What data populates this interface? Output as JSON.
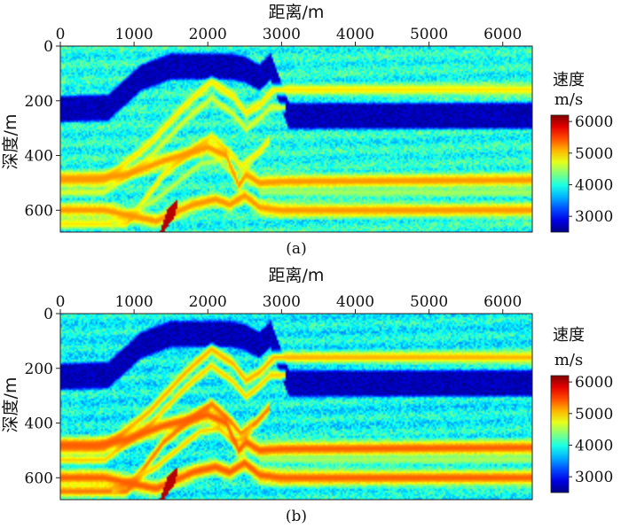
{
  "chart_data": [
    {
      "type": "heatmap",
      "panel": "(a)",
      "xlabel": "距离/m",
      "ylabel": "深度/m",
      "xlim": [
        0,
        6400
      ],
      "ylim": [
        0,
        680
      ],
      "xticks": [
        0,
        1000,
        2000,
        3000,
        4000,
        5000,
        6000
      ],
      "yticks": [
        0,
        200,
        400,
        600
      ],
      "colorbar": {
        "title": "速度",
        "unit": "m/s",
        "range": [
          2500,
          6200
        ],
        "ticks": [
          3000,
          4000,
          5000,
          6000
        ]
      },
      "background_velocity": 4000,
      "low_velocity_layer": {
        "velocity": 2700,
        "thickness_m": 110,
        "top_x": [
          0,
          650,
          1100,
          1500,
          2000,
          2300,
          2500,
          2700,
          2850,
          3100,
          3400,
          6400
        ],
        "top_z": [
          175,
          170,
          60,
          20,
          20,
          20,
          30,
          60,
          20,
          200,
          200,
          200
        ]
      },
      "reflectors": [
        {
          "velocity": 4900,
          "halfwidth_m": 14,
          "x": [
            0,
            600,
            1200,
            1700,
            2050,
            2350,
            2520,
            2700,
            2900,
            6400
          ],
          "z": [
            490,
            490,
            360,
            215,
            130,
            185,
            245,
            215,
            160,
            160
          ]
        },
        {
          "velocity": 4700,
          "halfwidth_m": 11,
          "x": [
            0,
            600,
            1200,
            1700,
            2050,
            2350,
            2520,
            2700,
            2850,
            3050
          ],
          "z": [
            535,
            535,
            410,
            270,
            190,
            250,
            305,
            265,
            225,
            225
          ]
        },
        {
          "velocity": 4900,
          "halfwidth_m": 13,
          "x": [
            0,
            900,
            1400,
            1800,
            2050,
            2300,
            2450,
            2650,
            2850
          ],
          "z": [
            650,
            650,
            470,
            380,
            330,
            390,
            440,
            400,
            340
          ]
        },
        {
          "velocity": 4600,
          "halfwidth_m": 10,
          "x": [
            700,
            1300,
            1900,
            2150,
            2350,
            2500,
            2600
          ],
          "z": [
            650,
            560,
            430,
            420,
            470,
            450,
            420
          ]
        },
        {
          "velocity": 5200,
          "halfwidth_m": 18,
          "x": [
            0,
            500,
            900,
            1400,
            2000,
            2250,
            2420,
            2520,
            2700,
            3000,
            6400
          ],
          "z": [
            485,
            485,
            470,
            420,
            370,
            400,
            510,
            470,
            500,
            495,
            490
          ]
        },
        {
          "velocity": 4500,
          "halfwidth_m": 9,
          "x": [
            2700,
            6400
          ],
          "z": [
            535,
            535
          ]
        },
        {
          "velocity": 5200,
          "halfwidth_m": 18,
          "x": [
            0,
            600,
            1300,
            1800,
            2100,
            2300,
            2500,
            2700,
            3000,
            6400
          ],
          "z": [
            600,
            600,
            640,
            580,
            560,
            580,
            545,
            590,
            600,
            600
          ]
        }
      ],
      "high_velocity_body": {
        "velocity": 6000,
        "x": [
          1350,
          1450,
          1600,
          1560,
          1400,
          1270
        ],
        "z": [
          680,
          600,
          560,
          620,
          680,
          680
        ]
      }
    },
    {
      "type": "heatmap",
      "panel": "(b)",
      "xlabel": "距离/m",
      "ylabel": "深度/m",
      "xlim": [
        0,
        6400
      ],
      "ylim": [
        0,
        680
      ],
      "xticks": [
        0,
        1000,
        2000,
        3000,
        4000,
        5000,
        6000
      ],
      "yticks": [
        0,
        200,
        400,
        600
      ],
      "colorbar": {
        "title": "速度",
        "unit": "m/s",
        "range": [
          2500,
          6200
        ],
        "ticks": [
          3000,
          4000,
          5000,
          6000
        ]
      },
      "background_velocity": 3900,
      "low_velocity_layer": {
        "velocity": 2700,
        "thickness_m": 110,
        "top_x": [
          0,
          650,
          1100,
          1500,
          2000,
          2300,
          2500,
          2700,
          2850,
          3100,
          3400,
          6400
        ],
        "top_z": [
          175,
          170,
          60,
          20,
          20,
          20,
          30,
          60,
          20,
          200,
          200,
          200
        ]
      },
      "reflectors": [
        {
          "velocity": 5100,
          "halfwidth_m": 15,
          "x": [
            0,
            600,
            1200,
            1700,
            2050,
            2350,
            2520,
            2700,
            2900,
            6400
          ],
          "z": [
            490,
            490,
            360,
            215,
            130,
            185,
            245,
            215,
            160,
            160
          ]
        },
        {
          "velocity": 5000,
          "halfwidth_m": 12,
          "x": [
            0,
            600,
            1200,
            1700,
            2050,
            2350,
            2520,
            2700,
            2850,
            3050
          ],
          "z": [
            535,
            535,
            410,
            270,
            190,
            250,
            305,
            265,
            225,
            225
          ]
        },
        {
          "velocity": 5300,
          "halfwidth_m": 15,
          "x": [
            0,
            900,
            1400,
            1800,
            2050,
            2300,
            2450,
            2650,
            2850
          ],
          "z": [
            650,
            650,
            470,
            380,
            330,
            390,
            440,
            400,
            340
          ]
        },
        {
          "velocity": 5000,
          "halfwidth_m": 11,
          "x": [
            700,
            1300,
            1900,
            2150,
            2350,
            2500,
            2600
          ],
          "z": [
            650,
            560,
            430,
            420,
            470,
            450,
            420
          ]
        },
        {
          "velocity": 5400,
          "halfwidth_m": 20,
          "x": [
            0,
            500,
            900,
            1400,
            2000,
            2250,
            2420,
            2520,
            2700,
            3000,
            6400
          ],
          "z": [
            480,
            480,
            460,
            410,
            370,
            400,
            500,
            470,
            500,
            495,
            490
          ]
        },
        {
          "velocity": 4500,
          "halfwidth_m": 9,
          "x": [
            2700,
            6400
          ],
          "z": [
            535,
            535
          ]
        },
        {
          "velocity": 5400,
          "halfwidth_m": 20,
          "x": [
            0,
            600,
            1300,
            1800,
            2100,
            2300,
            2500,
            2700,
            3000,
            6400
          ],
          "z": [
            600,
            600,
            640,
            580,
            560,
            580,
            545,
            590,
            600,
            600
          ]
        }
      ],
      "high_velocity_body": {
        "velocity": 6000,
        "x": [
          1350,
          1450,
          1600,
          1560,
          1400,
          1270
        ],
        "z": [
          680,
          600,
          560,
          620,
          680,
          680
        ]
      }
    }
  ]
}
